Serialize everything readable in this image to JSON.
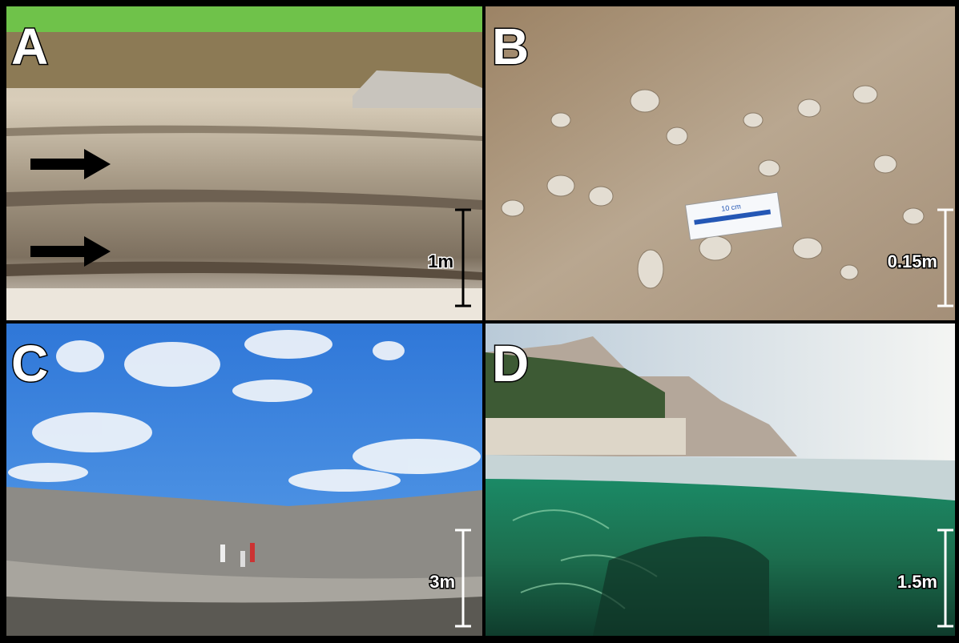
{
  "panels": [
    {
      "label": "A",
      "scale": "1m"
    },
    {
      "label": "B",
      "scale": "0.15m",
      "card_text": "10 cm"
    },
    {
      "label": "C",
      "scale": "3m"
    },
    {
      "label": "D",
      "scale": "1.5m"
    }
  ]
}
